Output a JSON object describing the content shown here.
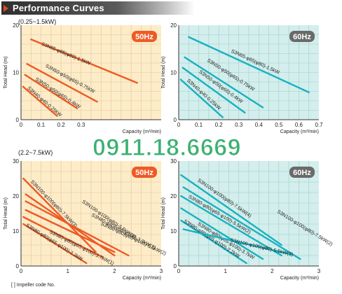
{
  "header": {
    "title": "Performance Curves"
  },
  "footnote": "[ ] Impeller code No.",
  "watermark": "0911.18.6669",
  "chart_data": [
    {
      "type": "line",
      "range_label": "(0.25~1.5kW)",
      "badge": "50Hz",
      "bg": "#fdecc8",
      "grid": "#e3c59a",
      "line": "#ee5a24",
      "badge_color": "#ee5a24",
      "xlabel": "Capacity (m³/min)",
      "ylabel": "Total Head (m)",
      "xlim": [
        0,
        0.7
      ],
      "ylim": [
        0,
        20
      ],
      "xticks": [
        0,
        0.1,
        0.2,
        0.3
      ],
      "yticks": [
        0,
        10,
        20
      ],
      "series": [
        {
          "name": "S3N65-φ65(φ80)-1.5kW",
          "points": [
            [
              0.05,
              17.0
            ],
            [
              0.58,
              7.8
            ]
          ],
          "label_pos": [
            0.1,
            15.8
          ]
        },
        {
          "name": "S3N50-φ50(φ65)-0.75kW",
          "points": [
            [
              0.03,
              11.8
            ],
            [
              0.38,
              3.8
            ]
          ],
          "label_pos": [
            0.12,
            11.2
          ]
        },
        {
          "name": "S3N50-φ50(φ65)-0.4kW",
          "points": [
            [
              0.02,
              9.5
            ],
            [
              0.28,
              2.4
            ]
          ],
          "label_pos": [
            0.07,
            8.4
          ]
        },
        {
          "name": "S3N40-φ40-0.25kW",
          "points": [
            [
              0.01,
              7.0
            ],
            [
              0.18,
              0.8
            ]
          ],
          "label_pos": [
            0.03,
            6.6
          ]
        }
      ]
    },
    {
      "type": "line",
      "range_label": "",
      "badge": "60Hz",
      "bg": "#d3eeec",
      "grid": "#9fcfc9",
      "line": "#17b1c1",
      "badge_color": "#6a6a6a",
      "xlabel": "Capacity (m³/min)",
      "ylabel": "Total Head (m)",
      "xlim": [
        0,
        0.7
      ],
      "ylim": [
        0,
        20
      ],
      "xticks": [
        0,
        0.1,
        0.2,
        0.3,
        0.4,
        0.5,
        0.6,
        0.7
      ],
      "yticks": [
        0,
        10,
        20
      ],
      "series": [
        {
          "name": "S3N65-φ65(φ80)-1.5kW",
          "points": [
            [
              0.05,
              17.5
            ],
            [
              0.65,
              5.8
            ]
          ],
          "label_pos": [
            0.26,
            14.3
          ]
        },
        {
          "name": "S3N50-φ50(φ65)-0.75kW",
          "points": [
            [
              0.03,
              13.2
            ],
            [
              0.42,
              2.6
            ]
          ],
          "label_pos": [
            0.14,
            12.4
          ]
        },
        {
          "name": "S3N50-φ50(φ65)-0.4kW",
          "points": [
            [
              0.02,
              11.0
            ],
            [
              0.33,
              1.5
            ]
          ],
          "label_pos": [
            0.1,
            10.0
          ]
        },
        {
          "name": "S3N40-φ40-0.25kW",
          "points": [
            [
              0.01,
              8.5
            ],
            [
              0.22,
              0.5
            ]
          ],
          "label_pos": [
            0.04,
            8.2
          ]
        }
      ]
    },
    {
      "type": "line",
      "range_label": "(2.2~7.5kW)",
      "badge": "50Hz",
      "bg": "#fdecc8",
      "grid": "#e3c59a",
      "line": "#ee5a24",
      "badge_color": "#ee5a24",
      "xlabel": "Capacity (m³/min)",
      "ylabel": "Total Head (m)",
      "xlim": [
        0,
        3
      ],
      "ylim": [
        0,
        30
      ],
      "xticks": [
        0,
        1,
        2,
        3
      ],
      "yticks": [
        0,
        10,
        20,
        30
      ],
      "series": [
        {
          "name": "S3N100-φ100(φ80)-7.5kW(3)",
          "points": [
            [
              0.05,
              25.0
            ],
            [
              1.6,
              4.0
            ]
          ],
          "label_pos": [
            0.2,
            24.0
          ]
        },
        {
          "name": "S3N100-φ100(φ80)-5.5kW(3)",
          "points": [
            [
              0.1,
              20.5
            ],
            [
              2.0,
              3.0
            ]
          ],
          "label_pos": [
            1.3,
            18.2
          ]
        },
        {
          "name": "S3N80-φ80(φ65·φ100)-3.7kW(2)",
          "points": [
            [
              0.1,
              18.5
            ],
            [
              2.3,
              3.0
            ]
          ],
          "label_pos": [
            1.5,
            14.3
          ]
        },
        {
          "name": "S3N80-φ80(φ65·φ100)-5.5kW(2)",
          "points": [
            [
              0.1,
              16.0
            ],
            [
              2.0,
              4.0
            ]
          ],
          "label_pos": [
            1.7,
            11.8
          ]
        },
        {
          "name": "S3N80-φ80(φ65·φ100)-3.7kW(1)",
          "points": [
            [
              0.05,
              14.0
            ],
            [
              1.75,
              2.5
            ]
          ],
          "label_pos": [
            0.6,
            9.5
          ]
        },
        {
          "name": "S3N80-φ80(φ65·φ100)-2.2kW",
          "points": [
            [
              0.05,
              12.0
            ],
            [
              1.4,
              0.8
            ]
          ],
          "label_pos": [
            0.1,
            11.4
          ]
        }
      ]
    },
    {
      "type": "line",
      "range_label": "",
      "badge": "60Hz",
      "bg": "#d3eeec",
      "grid": "#9fcfc9",
      "line": "#17b1c1",
      "badge_color": "#6a6a6a",
      "xlabel": "Capacity (m³/min)",
      "ylabel": "Total Head (m)",
      "xlim": [
        0,
        3
      ],
      "ylim": [
        0,
        30
      ],
      "xticks": [
        0,
        1,
        2,
        3
      ],
      "yticks": [
        0,
        10,
        20,
        30
      ],
      "series": [
        {
          "name": "S3N100-φ100(φ80)-7.5kW(4)",
          "points": [
            [
              0.05,
              26.0
            ],
            [
              2.2,
              6.0
            ]
          ],
          "label_pos": [
            0.4,
            24.3
          ]
        },
        {
          "name": "S3N100-φ100(φ80)-7.5kW(2)",
          "points": [
            [
              0.1,
              22.5
            ],
            [
              2.6,
              2.0
            ]
          ],
          "label_pos": [
            2.1,
            15.3
          ]
        },
        {
          "name": "S3N80-φ80(φ65·φ100)-5.5kW(2)",
          "points": [
            [
              0.05,
              20.0
            ],
            [
              2.2,
              3.0
            ]
          ],
          "label_pos": [
            0.2,
            19.6
          ]
        },
        {
          "name": "S3N80-φ80(φ65·φ100)-3.7kW",
          "points": [
            [
              0.05,
              16.5
            ],
            [
              1.8,
              2.0
            ]
          ],
          "label_pos": [
            0.4,
            11.8
          ]
        },
        {
          "name": "S3N80-φ80(φ65·φ100)-2.2kW",
          "points": [
            [
              0.05,
              13.0
            ],
            [
              1.45,
              0.8
            ]
          ],
          "label_pos": [
            0.1,
            12.6
          ]
        },
        {
          "name": "S3N100-φ100(φ80)-5.5kW(3)",
          "points": [
            [
              0.1,
              10.5
            ],
            [
              2.45,
              3.2
            ]
          ],
          "label_pos": [
            1.1,
            7.0
          ]
        }
      ]
    }
  ]
}
